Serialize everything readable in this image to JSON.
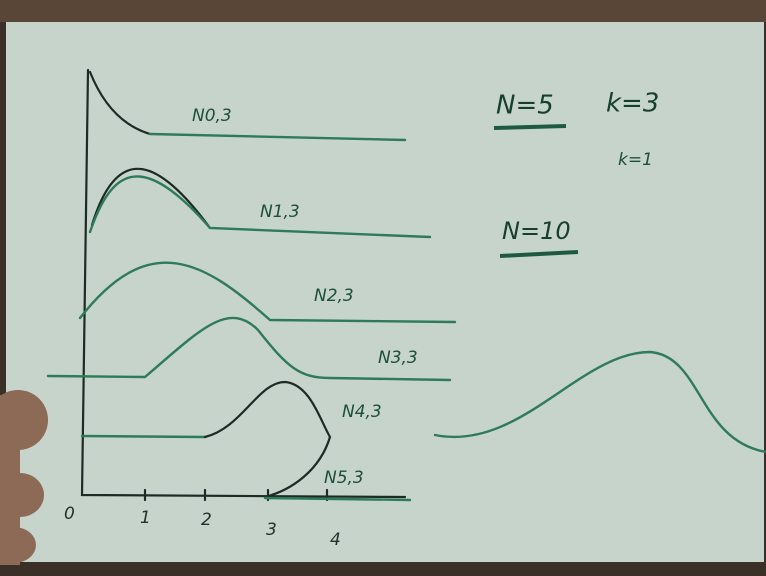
{
  "curve_labels": [
    "N0,3",
    "N1,3",
    "N2,3",
    "N3,3",
    "N4,3",
    "N5,3"
  ],
  "notes": {
    "n_first": "N=5",
    "k_first": "k=3",
    "k_second": "k=1",
    "n_second": "N=10"
  },
  "axis_labels": [
    "0",
    "1",
    "2",
    "3",
    "4"
  ]
}
